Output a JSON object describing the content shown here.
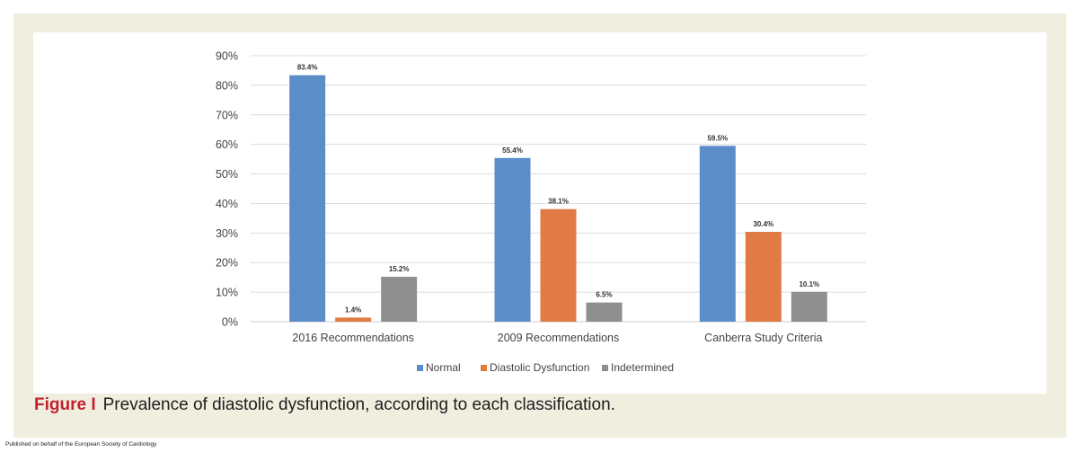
{
  "chart_data": {
    "type": "bar",
    "title": "",
    "xlabel": "",
    "ylabel": "",
    "ylim": [
      0,
      90
    ],
    "yticks": [
      0,
      10,
      20,
      30,
      40,
      50,
      60,
      70,
      80,
      90
    ],
    "ytick_labels": [
      "0%",
      "10%",
      "20%",
      "30%",
      "40%",
      "50%",
      "60%",
      "70%",
      "80%",
      "90%"
    ],
    "categories": [
      "2016 Recommendations",
      "2009 Recommendations",
      "Canberra Study Criteria"
    ],
    "series": [
      {
        "name": "Normal",
        "color": "#5b8dc9",
        "values": [
          83.4,
          55.4,
          59.5
        ],
        "labels": [
          "83.4%",
          "55.4%",
          "59.5%"
        ]
      },
      {
        "name": "Diastolic Dysfunction",
        "color": "#e07b45",
        "values": [
          1.4,
          38.1,
          30.4
        ],
        "labels": [
          "1.4%",
          "38.1%",
          "30.4%"
        ]
      },
      {
        "name": "Indetermined",
        "color": "#8f8f8f",
        "values": [
          15.2,
          6.5,
          10.1
        ],
        "labels": [
          "15.2%",
          "6.5%",
          "10.1%"
        ]
      }
    ],
    "grid": true,
    "legend_position": "bottom-center"
  },
  "caption": {
    "label": "Figure I",
    "text": "Prevalence of diastolic dysfunction, according to each classification."
  },
  "footer": {
    "publisher": "Published on behalf of the European Society of Cardiology"
  }
}
